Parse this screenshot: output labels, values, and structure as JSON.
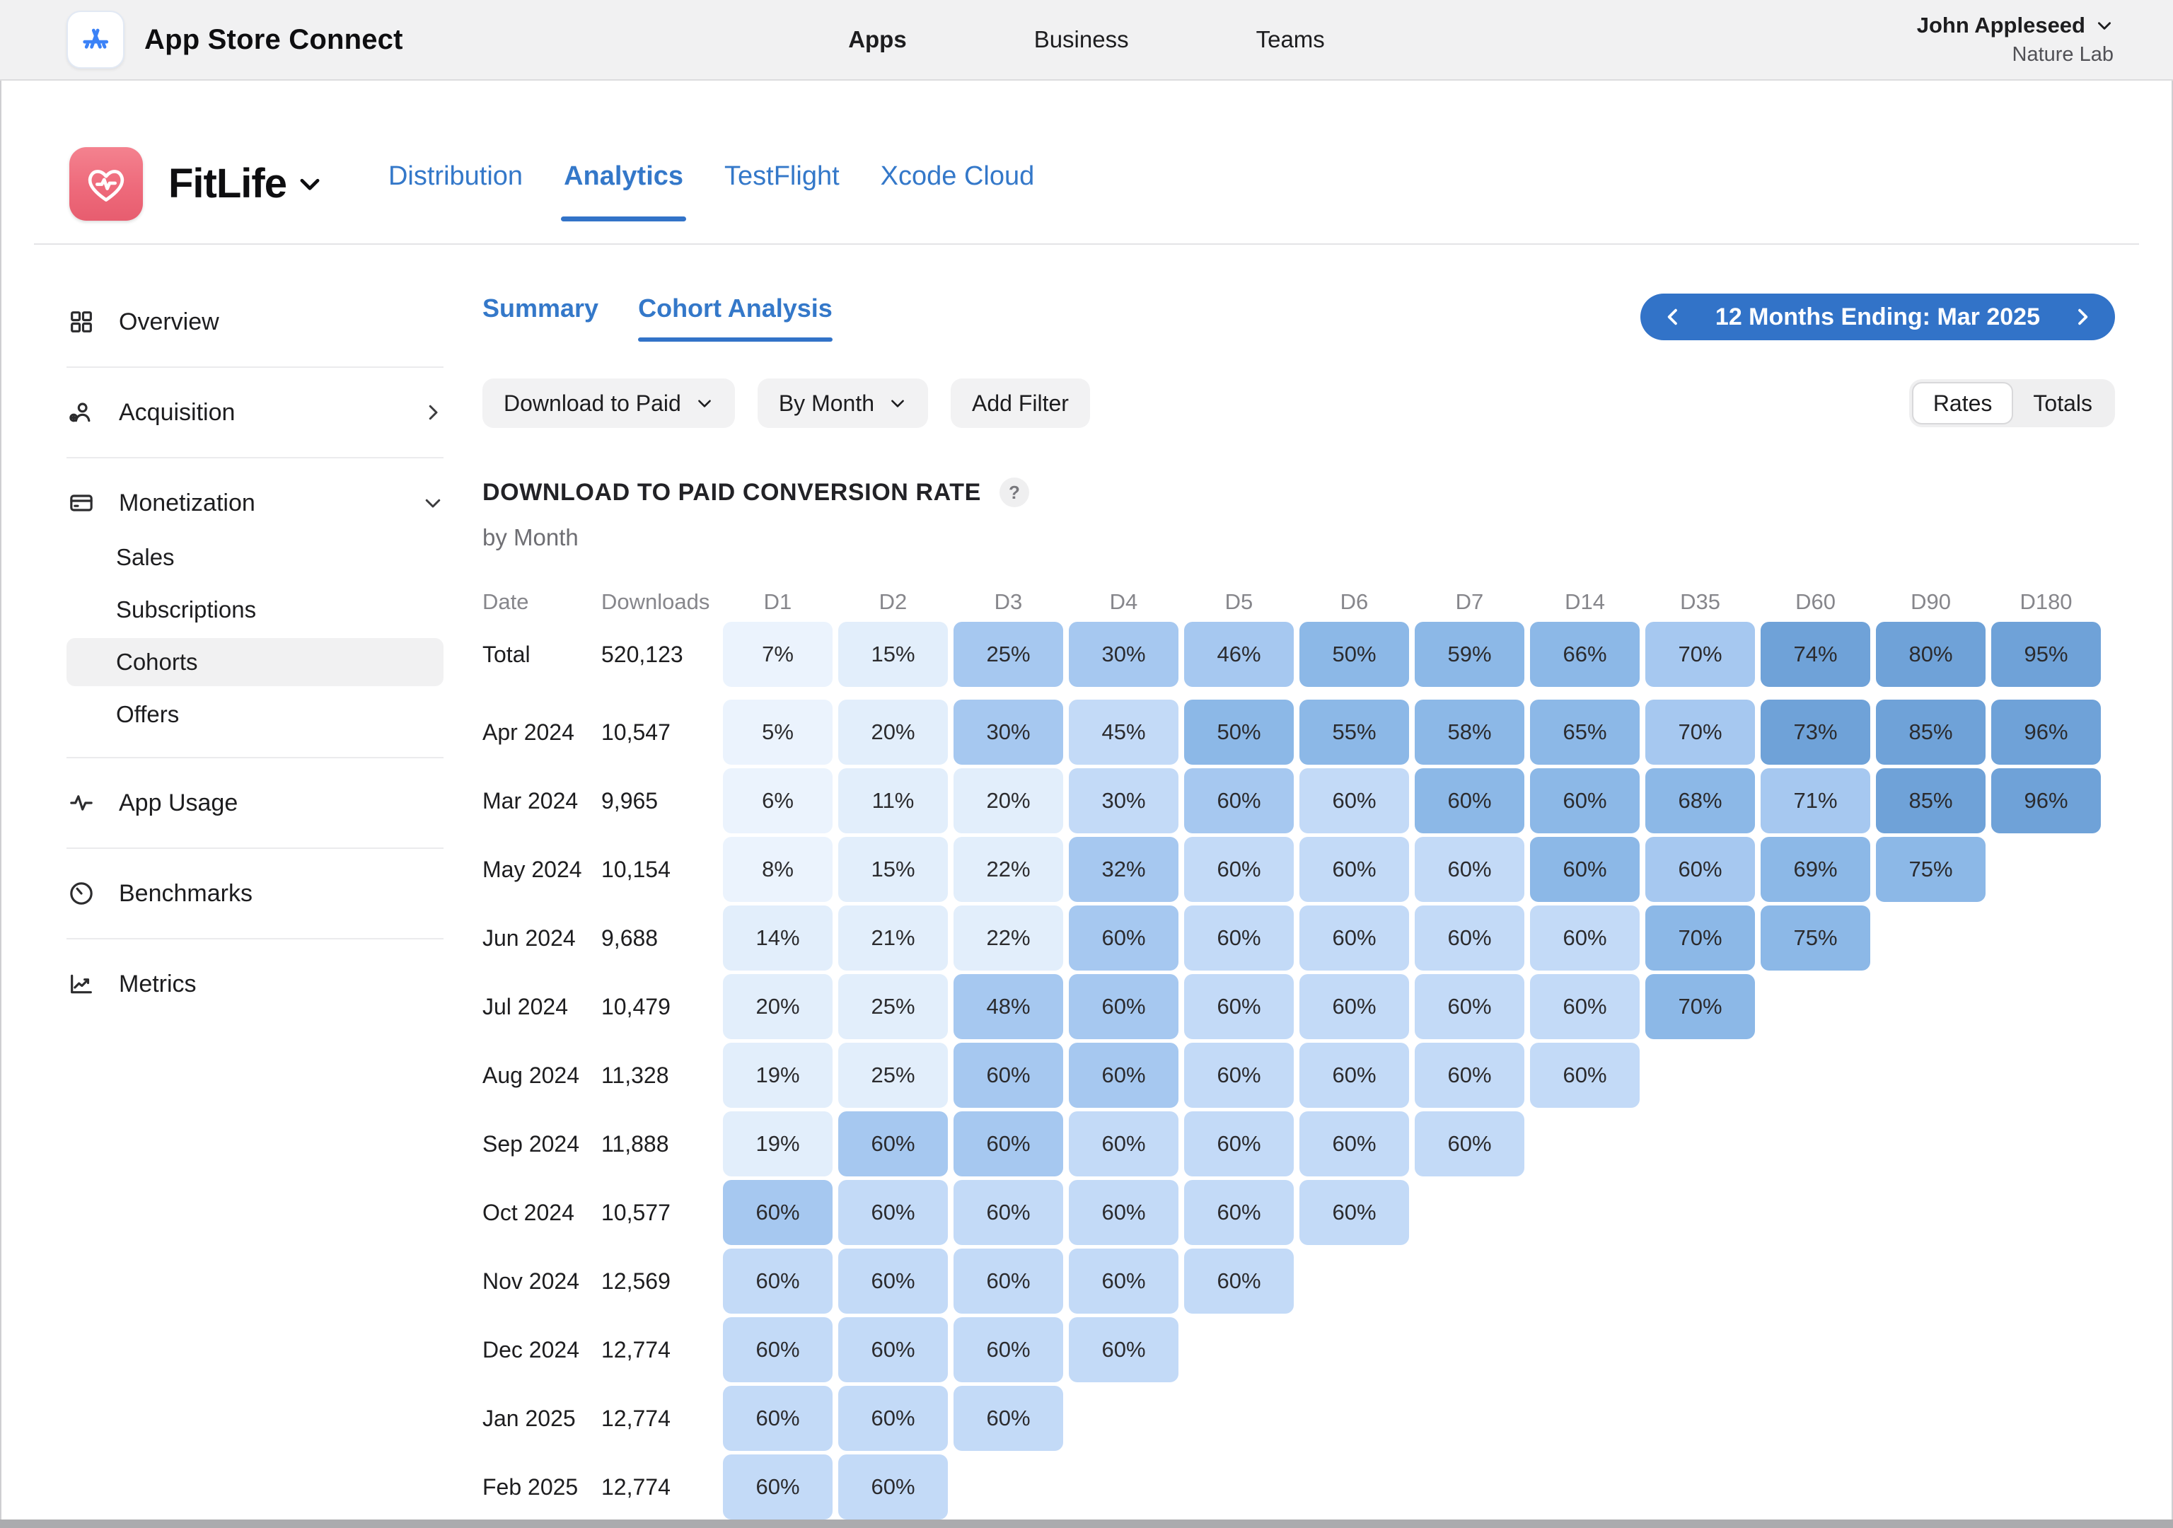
{
  "topbar": {
    "app_title": "App Store Connect",
    "nav": [
      {
        "label": "Apps",
        "active": true
      },
      {
        "label": "Business",
        "active": false
      },
      {
        "label": "Teams",
        "active": false
      }
    ],
    "user": {
      "name": "John Appleseed",
      "org": "Nature Lab"
    }
  },
  "app_header": {
    "app_name": "FitLife",
    "tabs": [
      {
        "label": "Distribution",
        "active": false
      },
      {
        "label": "Analytics",
        "active": true
      },
      {
        "label": "TestFlight",
        "active": false
      },
      {
        "label": "Xcode Cloud",
        "active": false
      }
    ]
  },
  "sidebar": {
    "items": [
      {
        "label": "Overview",
        "icon": "grid-icon"
      },
      {
        "label": "Acquisition",
        "icon": "person-add-icon",
        "chevron": "right"
      },
      {
        "label": "Monetization",
        "icon": "card-icon",
        "chevron": "down",
        "children": [
          "Sales",
          "Subscriptions",
          "Cohorts",
          "Offers"
        ],
        "active_child": "Cohorts"
      },
      {
        "label": "App Usage",
        "icon": "activity-icon"
      },
      {
        "label": "Benchmarks",
        "icon": "gauge-icon"
      },
      {
        "label": "Metrics",
        "icon": "chart-icon"
      }
    ]
  },
  "content": {
    "tabs": [
      {
        "label": "Summary",
        "active": false
      },
      {
        "label": "Cohort Analysis",
        "active": true
      }
    ],
    "date_range": "12 Months Ending: Mar 2025",
    "filters": [
      {
        "label": "Download to Paid",
        "dropdown": true
      },
      {
        "label": "By Month",
        "dropdown": true
      },
      {
        "label": "Add Filter",
        "dropdown": false
      }
    ],
    "view_toggle": {
      "options": [
        "Rates",
        "Totals"
      ],
      "selected": "Rates"
    },
    "section_title": "DOWNLOAD TO PAID CONVERSION RATE",
    "help_badge": "?",
    "section_subtitle": "by Month"
  },
  "colors": {
    "accent_blue": "#3273c8",
    "link_blue": "#3478c9",
    "heat_palette": [
      "#ebf3fd",
      "#e2eefb",
      "#c3daf7",
      "#a6c8f0",
      "#8cb8e7",
      "#6fa2d8"
    ]
  },
  "chart_data": {
    "type": "heatmap",
    "title": "DOWNLOAD TO PAID CONVERSION RATE",
    "subtitle": "by Month",
    "header_date": "Date",
    "header_downloads": "Downloads",
    "day_columns": [
      "D1",
      "D2",
      "D3",
      "D4",
      "D5",
      "D6",
      "D7",
      "D14",
      "D35",
      "D60",
      "D90",
      "D180"
    ],
    "rows": [
      {
        "date": "Total",
        "downloads": "520,123",
        "is_total": true,
        "values": [
          "7%",
          "15%",
          "25%",
          "30%",
          "46%",
          "50%",
          "59%",
          "66%",
          "70%",
          "74%",
          "80%",
          "95%"
        ],
        "shades": [
          0,
          1,
          3,
          3,
          3,
          4,
          4,
          4,
          3,
          5,
          5,
          5
        ]
      },
      {
        "date": "Apr 2024",
        "downloads": "10,547",
        "values": [
          "5%",
          "20%",
          "30%",
          "45%",
          "50%",
          "55%",
          "58%",
          "65%",
          "70%",
          "73%",
          "85%",
          "96%"
        ],
        "shades": [
          0,
          1,
          3,
          2,
          4,
          4,
          4,
          4,
          3,
          5,
          5,
          5
        ]
      },
      {
        "date": "Mar 2024",
        "downloads": "9,965",
        "values": [
          "6%",
          "11%",
          "20%",
          "30%",
          "60%",
          "60%",
          "60%",
          "60%",
          "68%",
          "71%",
          "85%",
          "96%"
        ],
        "shades": [
          0,
          1,
          1,
          2,
          3,
          2,
          4,
          4,
          4,
          3,
          5,
          5
        ]
      },
      {
        "date": "May 2024",
        "downloads": "10,154",
        "values": [
          "8%",
          "15%",
          "22%",
          "32%",
          "60%",
          "60%",
          "60%",
          "60%",
          "60%",
          "69%",
          "75%"
        ],
        "shades": [
          0,
          1,
          1,
          3,
          2,
          2,
          2,
          4,
          3,
          4,
          4
        ]
      },
      {
        "date": "Jun 2024",
        "downloads": "9,688",
        "values": [
          "14%",
          "21%",
          "22%",
          "60%",
          "60%",
          "60%",
          "60%",
          "60%",
          "70%",
          "75%"
        ],
        "shades": [
          1,
          1,
          1,
          3,
          2,
          2,
          2,
          2,
          4,
          4
        ]
      },
      {
        "date": "Jul 2024",
        "downloads": "10,479",
        "values": [
          "20%",
          "25%",
          "48%",
          "60%",
          "60%",
          "60%",
          "60%",
          "60%",
          "70%"
        ],
        "shades": [
          1,
          1,
          3,
          3,
          2,
          2,
          2,
          2,
          4
        ]
      },
      {
        "date": "Aug 2024",
        "downloads": "11,328",
        "values": [
          "19%",
          "25%",
          "60%",
          "60%",
          "60%",
          "60%",
          "60%",
          "60%"
        ],
        "shades": [
          1,
          1,
          3,
          3,
          2,
          2,
          2,
          2
        ]
      },
      {
        "date": "Sep 2024",
        "downloads": "11,888",
        "values": [
          "19%",
          "60%",
          "60%",
          "60%",
          "60%",
          "60%",
          "60%"
        ],
        "shades": [
          1,
          3,
          3,
          2,
          2,
          2,
          2
        ]
      },
      {
        "date": "Oct 2024",
        "downloads": "10,577",
        "values": [
          "60%",
          "60%",
          "60%",
          "60%",
          "60%",
          "60%"
        ],
        "shades": [
          3,
          2,
          2,
          2,
          2,
          2
        ]
      },
      {
        "date": "Nov 2024",
        "downloads": "12,569",
        "values": [
          "60%",
          "60%",
          "60%",
          "60%",
          "60%"
        ],
        "shades": [
          2,
          2,
          2,
          2,
          2
        ]
      },
      {
        "date": "Dec 2024",
        "downloads": "12,774",
        "values": [
          "60%",
          "60%",
          "60%",
          "60%"
        ],
        "shades": [
          2,
          2,
          2,
          2
        ]
      },
      {
        "date": "Jan 2025",
        "downloads": "12,774",
        "values": [
          "60%",
          "60%",
          "60%"
        ],
        "shades": [
          2,
          2,
          2
        ]
      },
      {
        "date": "Feb 2025",
        "downloads": "12,774",
        "values": [
          "60%",
          "60%"
        ],
        "shades": [
          2,
          2
        ]
      }
    ]
  }
}
